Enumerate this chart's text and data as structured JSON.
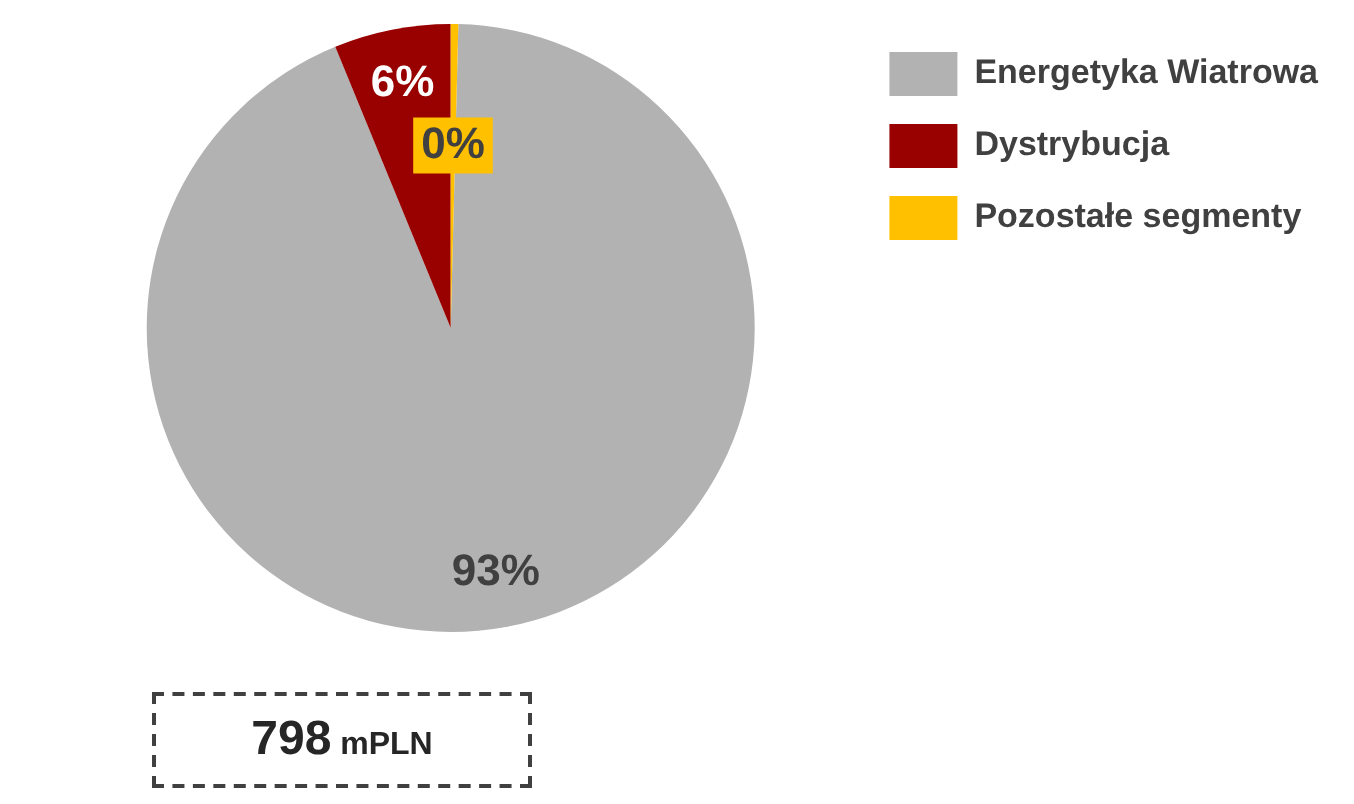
{
  "chart_data": {
    "type": "pie",
    "categories": [
      "Energetyka Wiatrowa",
      "Dystrybucja",
      "Pozostałe segmenty"
    ],
    "values": [
      93.4,
      6.2,
      0.4
    ],
    "colors": [
      "#b2b2b2",
      "#990000",
      "#ffc000"
    ],
    "value_labels": [
      "93%",
      "6%",
      "0%"
    ],
    "legend": "right",
    "annotations": [
      "798 mPLN"
    ]
  }
}
